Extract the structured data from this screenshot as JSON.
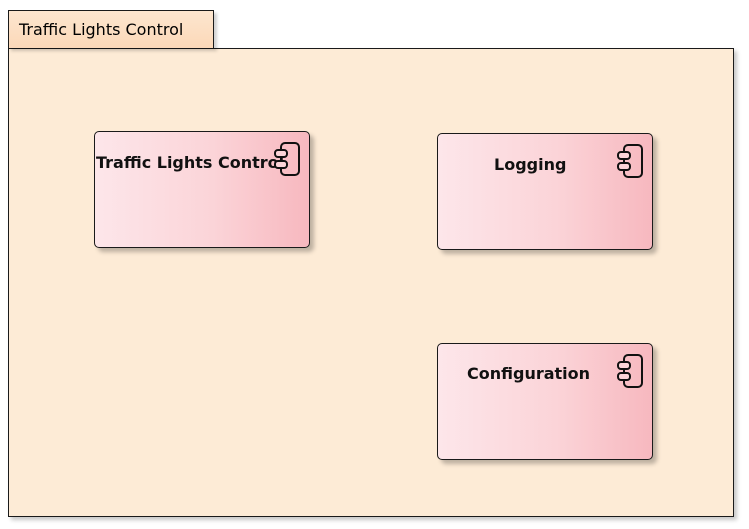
{
  "package": {
    "title": "Traffic Lights Control"
  },
  "components": [
    {
      "name": "Traffic Lights Control",
      "icon": "component-icon"
    },
    {
      "name": "Logging",
      "icon": "component-icon"
    },
    {
      "name": "Configuration",
      "icon": "component-icon"
    }
  ],
  "colors": {
    "package_fill": "#fdebd6",
    "package_tab_fill": "#fbd8b8",
    "component_fill_light": "#fde6ea",
    "component_fill_dark": "#f7b8bf",
    "border": "#1a1a1a"
  }
}
